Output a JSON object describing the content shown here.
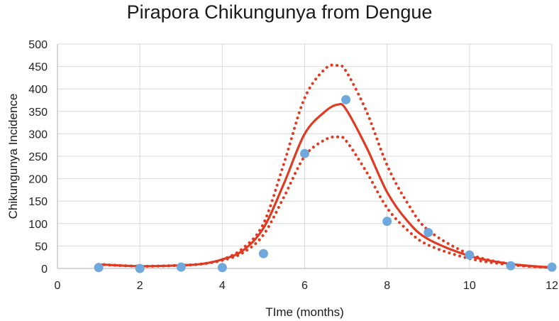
{
  "chart_data": {
    "type": "line",
    "title": "Pirapora Chikungunya from Dengue",
    "xlabel": "TIme (months)",
    "ylabel": "Chikungunya Incidence",
    "xlim": [
      0,
      12
    ],
    "ylim": [
      0,
      500
    ],
    "x_ticks": [
      "0",
      "2",
      "4",
      "6",
      "8",
      "10",
      "12"
    ],
    "y_ticks": [
      "0",
      "50",
      "100",
      "150",
      "200",
      "250",
      "300",
      "350",
      "400",
      "450",
      "500"
    ],
    "grid": true,
    "legend": "none",
    "colors": {
      "line": "#e03a22",
      "points": "#6fa8dc",
      "grid": "#d9d9d9"
    },
    "observed": {
      "style": "markers",
      "x": [
        1,
        2,
        3,
        4,
        5,
        6,
        7,
        8,
        9,
        10,
        11,
        12
      ],
      "y": [
        2,
        0,
        3,
        2,
        33,
        256,
        376,
        105,
        80,
        30,
        6,
        3
      ]
    },
    "fit": {
      "style": "solid",
      "x": [
        1,
        2,
        3,
        3.5,
        4,
        4.5,
        5,
        5.5,
        6,
        6.5,
        6.8,
        7,
        7.5,
        8,
        8.5,
        9,
        10,
        11,
        12
      ],
      "y": [
        9,
        5,
        7,
        10,
        20,
        40,
        90,
        190,
        300,
        350,
        365,
        355,
        270,
        170,
        105,
        65,
        28,
        10,
        2
      ]
    },
    "upper_bound": {
      "style": "dotted",
      "x": [
        1,
        2,
        3,
        3.5,
        4,
        4.5,
        5,
        5.5,
        6,
        6.5,
        6.8,
        7,
        7.5,
        8,
        8.5,
        9,
        10,
        11,
        12
      ],
      "y": [
        9,
        5,
        7,
        10,
        20,
        45,
        100,
        235,
        380,
        445,
        452,
        440,
        350,
        230,
        145,
        85,
        32,
        10,
        2
      ]
    },
    "lower_bound": {
      "style": "dotted",
      "x": [
        1,
        2,
        3,
        3.5,
        4,
        4.5,
        5,
        5.5,
        6,
        6.5,
        6.8,
        7,
        7.5,
        8,
        8.5,
        9,
        10,
        11,
        12
      ],
      "y": [
        9,
        5,
        7,
        10,
        18,
        35,
        75,
        160,
        250,
        287,
        293,
        285,
        215,
        135,
        85,
        52,
        22,
        8,
        2
      ]
    }
  }
}
